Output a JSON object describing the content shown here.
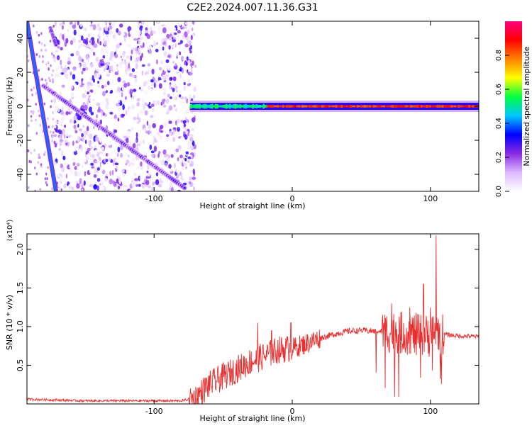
{
  "title": "C2E2.2024.007.11.36.G31",
  "colorbar": {
    "label": "Normalized spectral amplitude",
    "ticks": [
      "0.0",
      "0.2",
      "0.4",
      "0.6",
      "0.8"
    ],
    "range": [
      0,
      1
    ],
    "colors": [
      "#ffffff",
      "#dcb8ff",
      "#8a2be2",
      "#0000ff",
      "#00c8ff",
      "#00ff40",
      "#ffff00",
      "#ff8000",
      "#ff0000",
      "#ff0080"
    ]
  },
  "chart_data": [
    {
      "type": "heatmap",
      "xlabel": "Height of straight line (km)",
      "ylabel": "Frequency (Hz)",
      "xlim": [
        -192,
        135
      ],
      "ylim": [
        -50,
        50
      ],
      "xticks": [
        -100,
        0,
        100
      ],
      "xtick_labels": [
        "-100",
        "0",
        "100"
      ],
      "yticks": [
        -40,
        -20,
        0,
        20,
        40
      ],
      "ytick_labels": [
        "-40",
        "-20",
        "0",
        "20",
        "40"
      ],
      "features": {
        "noise_region_x": [
          -172,
          -70
        ],
        "steep_line": {
          "x": [
            -192,
            -171
          ],
          "y": [
            50,
            -50
          ],
          "amplitude": 0.4
        },
        "diagonal_line": {
          "x": [
            -180,
            -78
          ],
          "y": [
            12,
            -48
          ],
          "amplitude": 0.25
        },
        "left_stub": {
          "x": [
            -175,
            -171
          ],
          "y": [
            46,
            36
          ],
          "amplitude": 0.3
        },
        "carrier": {
          "x": [
            -74,
            135
          ],
          "y": 0,
          "amplitude_start": 0.45,
          "amplitude_end": 0.9,
          "transition_x": -20
        }
      }
    },
    {
      "type": "line",
      "xlabel": "Height of straight line (km)",
      "ylabel": "SNR (10 * v/v)",
      "y_scale_label": "(x10⁴)",
      "color": "#e83030",
      "xlim": [
        -192,
        135
      ],
      "ylim": [
        0,
        2.2
      ],
      "xticks": [
        -100,
        0,
        100
      ],
      "xtick_labels": [
        "-100",
        "0",
        "100"
      ],
      "yticks": [
        0.5,
        1.0,
        1.5,
        2.0
      ],
      "ytick_labels": [
        "0.5",
        "1.0",
        "1.5",
        "2.0"
      ],
      "x": [
        -192,
        -170,
        -150,
        -100,
        -80,
        -70,
        -60,
        -50,
        -40,
        -30,
        -20,
        -10,
        0,
        10,
        20,
        30,
        40,
        50,
        60,
        70,
        80,
        90,
        100,
        105,
        110,
        120,
        135
      ],
      "y": [
        0.06,
        0.05,
        0.04,
        0.04,
        0.04,
        0.08,
        0.25,
        0.35,
        0.45,
        0.55,
        0.62,
        0.7,
        0.72,
        0.78,
        0.85,
        0.9,
        0.94,
        0.95,
        0.94,
        0.93,
        0.92,
        0.9,
        0.88,
        0.95,
        0.9,
        0.88,
        0.87
      ],
      "spikes": [
        {
          "x": -25,
          "y": 1.05
        },
        {
          "x": -15,
          "y": 0.95
        },
        {
          "x": -1,
          "y": 1.05
        },
        {
          "x": 72,
          "y": 1.3
        },
        {
          "x": 85,
          "y": 1.25
        },
        {
          "x": 95,
          "y": 1.55
        },
        {
          "x": 100,
          "y": 1.25
        },
        {
          "x": 104,
          "y": 2.18
        }
      ]
    }
  ]
}
